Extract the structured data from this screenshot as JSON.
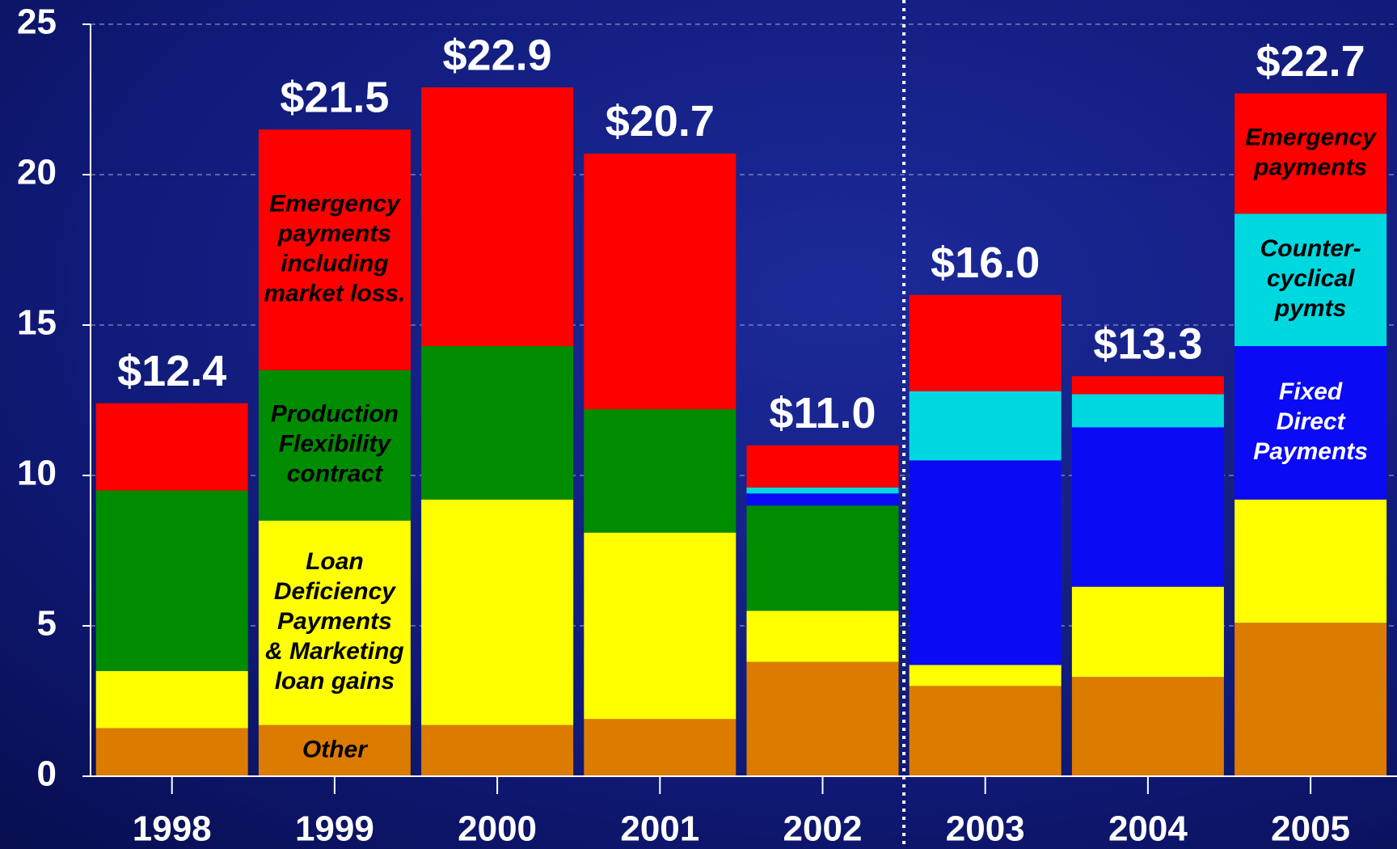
{
  "chart_data": {
    "type": "stacked_bar",
    "categories": [
      "1998",
      "1999",
      "2000",
      "2001",
      "2002",
      "2003",
      "2004",
      "2005"
    ],
    "ylim": [
      0,
      25
    ],
    "yticks": [
      0,
      5,
      10,
      15,
      20,
      25
    ],
    "grid": true,
    "series": [
      {
        "color": "#db7b00",
        "values": [
          1.6,
          1.7,
          1.7,
          1.9,
          3.8,
          3.0,
          3.3,
          5.1
        ],
        "labels": [
          null,
          [
            "Other"
          ],
          null,
          null,
          null,
          null,
          null,
          null
        ],
        "label_color": "#000000"
      },
      {
        "color": "#ffff00",
        "values": [
          1.9,
          6.8,
          7.5,
          6.2,
          1.7,
          0.7,
          3.0,
          4.1
        ],
        "labels": [
          null,
          [
            "Loan",
            "Deficiency",
            "Payments",
            "& Marketing",
            "loan gains"
          ],
          null,
          null,
          null,
          null,
          null,
          null
        ],
        "label_color": "#000000"
      },
      {
        "color": "#008c00",
        "values": [
          6.0,
          5.0,
          5.1,
          4.1,
          3.5,
          0,
          0,
          0
        ],
        "labels": [
          null,
          [
            "Production",
            "Flexibility",
            "contract"
          ],
          null,
          null,
          null,
          null,
          null,
          null
        ],
        "label_color": "#000000"
      },
      {
        "color": "#0a0af5",
        "values": [
          0,
          0,
          0,
          0,
          0.4,
          6.8,
          5.3,
          5.1
        ],
        "labels": [
          null,
          null,
          null,
          null,
          null,
          null,
          null,
          [
            "Fixed",
            "Direct",
            "Payments"
          ]
        ],
        "label_color": "#ffffff"
      },
      {
        "color": "#00d8e0",
        "values": [
          0,
          0,
          0,
          0,
          0.2,
          2.3,
          1.1,
          4.4
        ],
        "labels": [
          null,
          null,
          null,
          null,
          null,
          null,
          null,
          [
            "Counter-",
            "cyclical",
            "pymts"
          ]
        ],
        "label_color": "#000000"
      },
      {
        "color": "#ff0000",
        "values": [
          2.9,
          8.0,
          8.6,
          8.5,
          1.4,
          3.2,
          0.6,
          4.0
        ],
        "labels": [
          null,
          [
            "Emergency",
            "payments",
            "including",
            "market loss."
          ],
          null,
          null,
          null,
          null,
          null,
          [
            "Emergency",
            "payments"
          ]
        ],
        "label_color": "#000000"
      }
    ],
    "totals": {
      "values": [
        12.4,
        21.5,
        22.9,
        20.7,
        11.0,
        16.0,
        13.3,
        22.7
      ],
      "value_labels": [
        "$12.4",
        "$21.5",
        "$22.9",
        "$20.7",
        "$11.0",
        "$16.0",
        "$13.3",
        "$22.7"
      ]
    }
  }
}
